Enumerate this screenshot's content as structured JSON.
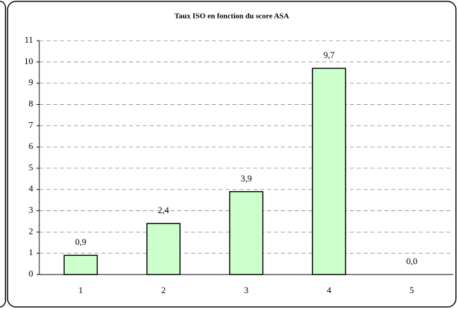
{
  "chart_data": {
    "type": "bar",
    "title": "Taux ISO en fonction du score ASA",
    "categories": [
      "1",
      "2",
      "3",
      "4",
      "5"
    ],
    "values": [
      0.9,
      2.4,
      3.9,
      9.7,
      0.0
    ],
    "value_labels": [
      "0,9",
      "2,4",
      "3,9",
      "9,7",
      "0,0"
    ],
    "color": "#ccffcc",
    "ylim": [
      0,
      11
    ],
    "yticks": [
      0,
      1,
      2,
      3,
      4,
      5,
      6,
      7,
      8,
      9,
      10,
      11
    ],
    "grid": true
  }
}
